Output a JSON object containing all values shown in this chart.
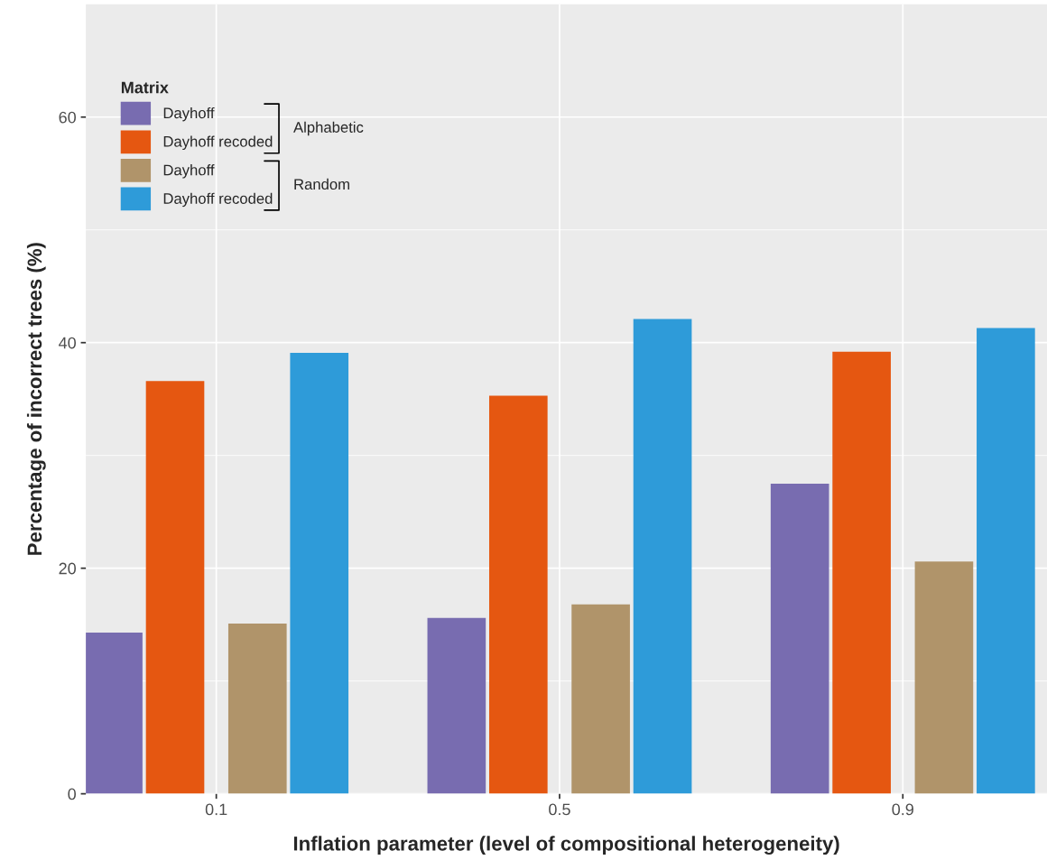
{
  "chart_data": {
    "type": "bar",
    "xlabel": "Inflation parameter (level of compositional heterogeneity)",
    "ylabel": "Percentage of incorrect trees (%)",
    "legend_title": "Matrix",
    "categories": [
      "0.1",
      "0.5",
      "0.9"
    ],
    "series": [
      {
        "name": "Dayhoff",
        "color": "#786cb0",
        "values": [
          14.3,
          15.6,
          27.5
        ]
      },
      {
        "name": "Dayhoff recoded",
        "color": "#e55711",
        "values": [
          36.6,
          35.3,
          39.2
        ]
      },
      {
        "name": "Dayhoff",
        "color": "#b0946a",
        "values": [
          15.1,
          16.8,
          20.6
        ]
      },
      {
        "name": "Dayhoff recoded",
        "color": "#2e9bd9",
        "values": [
          39.1,
          42.1,
          41.3
        ]
      }
    ],
    "annotations": [
      "Alphabetic",
      "Random"
    ],
    "ylim": [
      0,
      70
    ],
    "yticks": [
      0,
      20,
      40,
      60
    ],
    "grid": true,
    "legend": "top left"
  }
}
